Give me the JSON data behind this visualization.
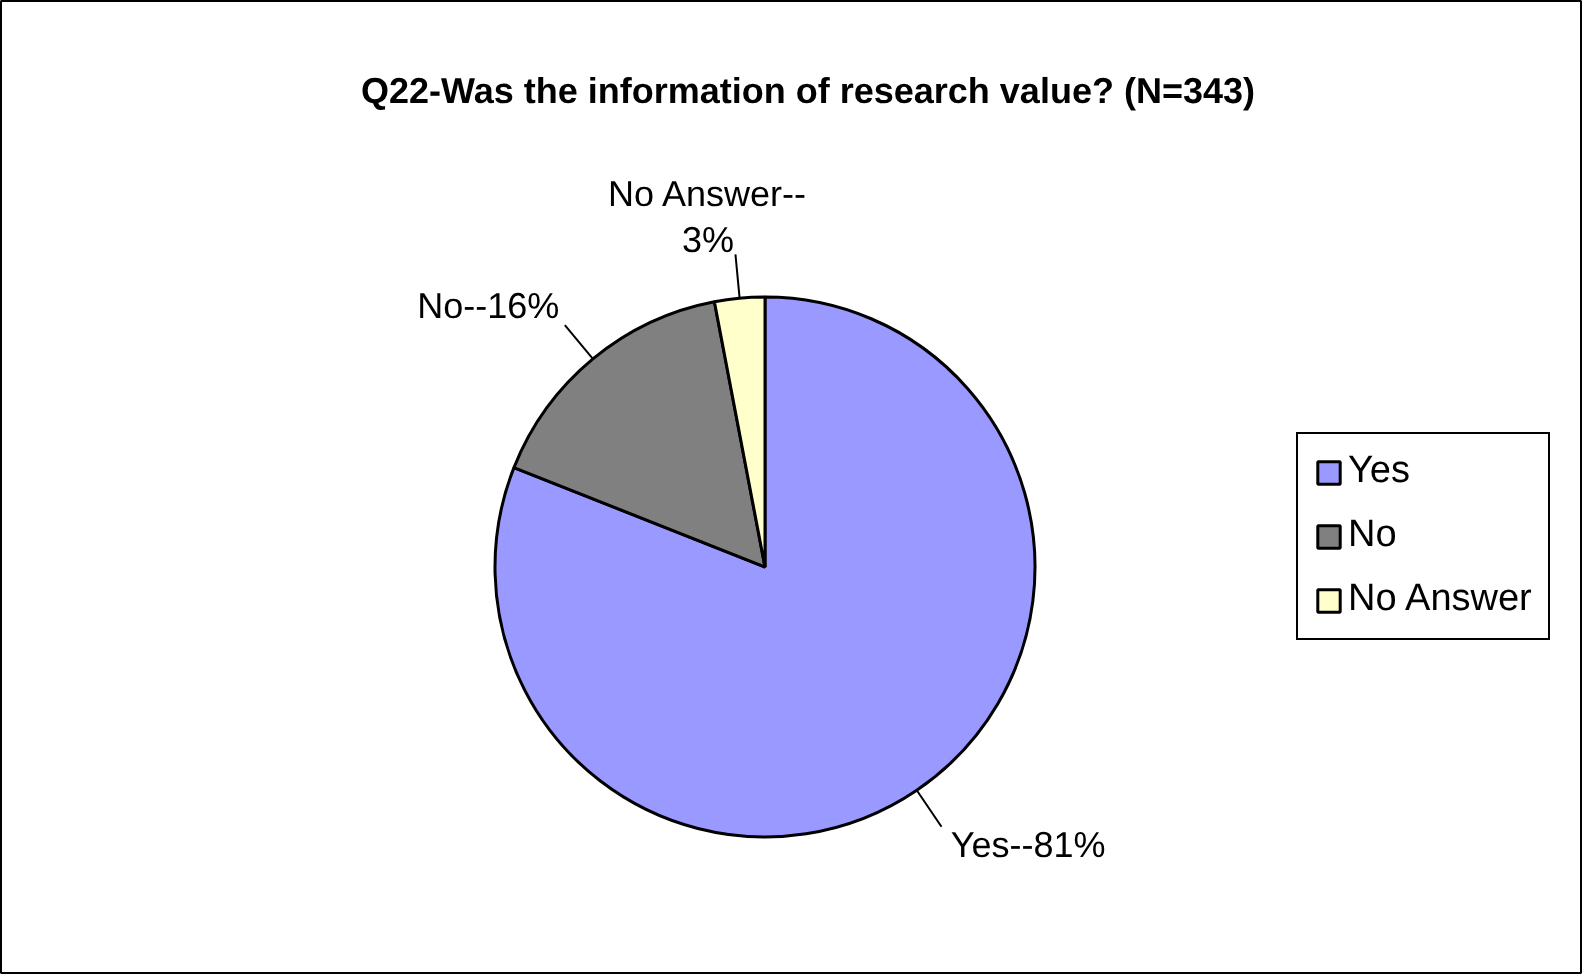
{
  "chart_data": {
    "type": "pie",
    "title": "Q22-Was the information of research value? (N=343)",
    "categories": [
      "Yes",
      "No",
      "No Answer"
    ],
    "values": [
      81,
      16,
      3
    ],
    "colors": [
      "#9999ff",
      "#808080",
      "#ffffcc"
    ],
    "value_labels": [
      "Yes--81%",
      "No--16%",
      "No Answer--\n3%"
    ],
    "legend": "right"
  }
}
